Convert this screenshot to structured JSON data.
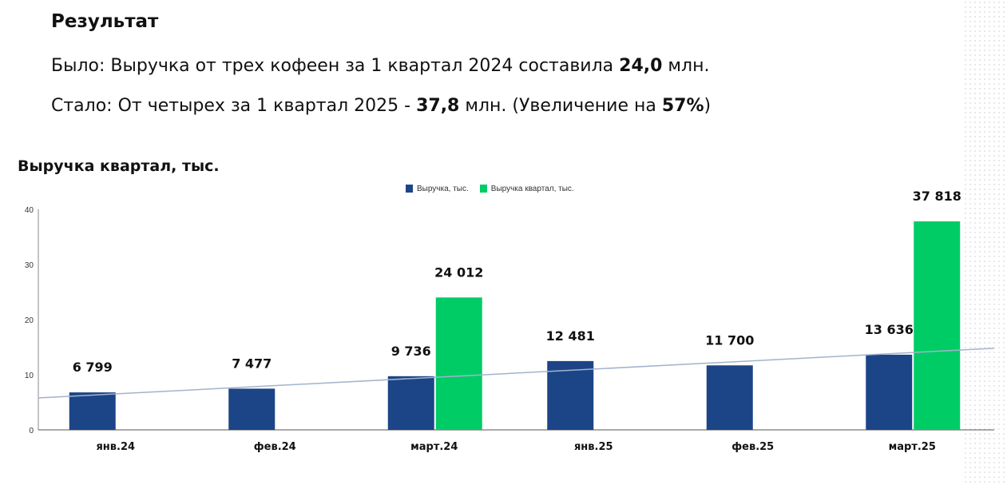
{
  "header": {
    "title": "Результат"
  },
  "before": {
    "prefix": "Было: Выручка от трех кофеен за 1 квартал 2024 составила ",
    "value": "24,0",
    "suffix": " млн."
  },
  "after": {
    "prefix": "Стало: От четырех за 1 квартал 2025 - ",
    "value": "37,8",
    "mid": " млн. (Увеличение на ",
    "pct": "57%",
    "suffix": ")"
  },
  "chart_data": {
    "type": "bar",
    "title": "Выручка квартал, тыс.",
    "categories": [
      "янв.24",
      "фев.24",
      "март.24",
      "янв.25",
      "фев.25",
      "март.25"
    ],
    "series": [
      {
        "name": "Выручка, тыс.",
        "color": "#1c4587",
        "values": [
          6.799,
          7.477,
          9.736,
          12.481,
          11.7,
          13.636
        ],
        "labels": [
          "6 799",
          "7 477",
          "9 736",
          "12 481",
          "11 700",
          "13 636"
        ]
      },
      {
        "name": "Выручка квартал, тыс.",
        "color": "#00cc66",
        "values": [
          null,
          null,
          24.012,
          null,
          null,
          37.818
        ],
        "labels": [
          "",
          "",
          "24 012",
          "",
          "",
          "37 818"
        ]
      }
    ],
    "trendline": {
      "color": "#a3b3cc",
      "start": 5.8,
      "end": 14.8
    },
    "ylim": [
      0,
      40
    ],
    "yticks": [
      "0",
      "10",
      "20",
      "30",
      "40"
    ],
    "legend": "top-center"
  }
}
